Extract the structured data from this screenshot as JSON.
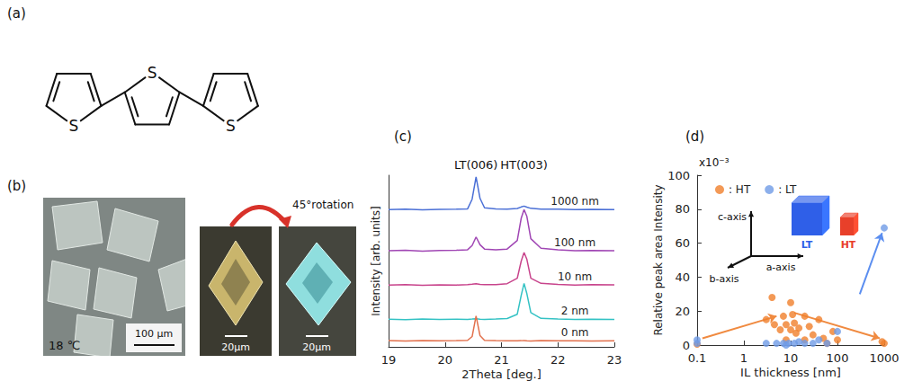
{
  "panels": {
    "a": {
      "label": "(a)",
      "atoms": [
        "S",
        "S",
        "S"
      ]
    },
    "b": {
      "label": "(b)",
      "temperature": "18 ℃",
      "scale_bars": [
        "100 µm",
        "20µm",
        "20µm"
      ],
      "rotation": "45°rotation"
    }
  },
  "chart_data": [
    {
      "panel": "(c)",
      "type": "line",
      "x_label": "2Theta [deg.]",
      "y_label": "Intensity [arb. units]",
      "x": [
        19,
        19.3,
        19.6,
        19.9,
        20.2,
        20.4,
        20.48,
        20.55,
        20.62,
        20.7,
        20.9,
        21.1,
        21.28,
        21.35,
        21.4,
        21.45,
        21.52,
        21.7,
        22.0,
        22.3,
        22.6,
        23
      ],
      "series": [
        {
          "name": "1000 nm",
          "color": "#4a6fd6",
          "values": [
            80,
            80.2,
            79.9,
            80.1,
            80.2,
            80.4,
            86,
            99,
            86.5,
            81,
            80.4,
            80.3,
            80.6,
            81.5,
            82,
            81.4,
            80.7,
            80.3,
            80.2,
            80,
            80.1,
            80
          ]
        },
        {
          "name": "100 nm",
          "color": "#a046b4",
          "values": [
            56,
            56.3,
            55.8,
            56.1,
            56.3,
            56.6,
            59,
            64,
            59.5,
            57,
            56.6,
            57,
            62,
            75,
            80,
            76,
            63,
            57.5,
            56.5,
            56,
            56.2,
            56
          ]
        },
        {
          "name": "10 nm",
          "color": "#c8448c",
          "values": [
            36,
            36.2,
            35.9,
            36.1,
            36,
            36.3,
            36.5,
            36.8,
            36.4,
            36.2,
            36.3,
            36.8,
            40,
            50,
            55,
            51,
            40,
            37,
            36.4,
            36,
            36.2,
            36.1
          ]
        },
        {
          "name": "2 nm",
          "color": "#34c2c4",
          "values": [
            16.1,
            15.9,
            16.2,
            16,
            16.1,
            16,
            16.2,
            16.4,
            16.1,
            16,
            16.2,
            16.5,
            19,
            30,
            37,
            31,
            20,
            16.6,
            16.2,
            16,
            16.1,
            16
          ]
        },
        {
          "name": "0 nm",
          "color": "#e2704c",
          "values": [
            3.6,
            3.4,
            3.7,
            3.5,
            3.6,
            3.8,
            6,
            18,
            6.5,
            3.8,
            3.6,
            3.5,
            3.5,
            3.6,
            3.7,
            3.5,
            3.4,
            3.6,
            3.5,
            3.5,
            3.4,
            3.5
          ]
        }
      ],
      "xlim": [
        19,
        23
      ],
      "xticks": [
        19,
        20,
        21,
        22,
        23
      ],
      "ylim": [
        0,
        100
      ],
      "tick_labels": "x",
      "grid": false,
      "annotations": [
        {
          "text": "LT(006)",
          "x": 20.55
        },
        {
          "text": "HT(003)",
          "x": 21.4
        }
      ]
    },
    {
      "panel": "(d)",
      "type": "scatter",
      "x_label": "IL thickness [nm]",
      "y_label": "Relative peak area Intensity",
      "y_multiplier": "x10⁻³",
      "log": "x",
      "xlim": [
        0.1,
        1000
      ],
      "xticks": [
        0.1,
        1,
        10,
        100,
        1000
      ],
      "ylim": [
        0,
        100
      ],
      "yticks": [
        0,
        20,
        40,
        60,
        80,
        100
      ],
      "grid": false,
      "legend": "top-left",
      "series": [
        {
          "name": ": HT",
          "color": "#f0802c",
          "x": [
            0.1,
            3,
            4,
            4.5,
            6,
            7,
            8,
            8,
            10,
            10,
            11,
            12,
            13,
            15,
            20,
            20,
            25,
            30,
            40,
            50,
            60,
            80,
            100,
            900,
            1000
          ],
          "values": [
            0.5,
            15,
            28,
            12,
            9,
            17,
            12,
            3,
            25,
            9,
            18,
            13,
            7,
            10,
            3,
            17,
            11,
            6,
            15,
            4,
            1,
            8,
            3,
            2,
            1
          ]
        },
        {
          "name": ": LT",
          "color": "#6f9be6",
          "x": [
            0.1,
            0.1,
            3,
            5,
            7,
            8,
            9,
            12,
            15,
            20,
            30,
            40,
            60,
            100,
            1000
          ],
          "values": [
            3,
            1,
            1,
            1,
            1,
            0,
            1,
            1,
            2,
            1,
            1,
            3,
            1,
            8,
            69
          ]
        }
      ],
      "arrows": [
        {
          "color": "#f08a40",
          "from": [
            0.13,
            4
          ],
          "to": [
            5,
            17
          ]
        },
        {
          "color": "#f08a40",
          "from": [
            12,
            19
          ],
          "to": [
            800,
            4
          ]
        },
        {
          "color": "#5b8ef0",
          "from": [
            300,
            30
          ],
          "to": [
            900,
            66
          ]
        }
      ],
      "inset": {
        "crystals": [
          {
            "label": "LT",
            "color": "#2f5fe8"
          },
          {
            "label": "HT",
            "color": "#e8402a"
          }
        ],
        "axes": [
          "c-axis",
          "b-axis",
          "a-axis"
        ]
      }
    }
  ]
}
